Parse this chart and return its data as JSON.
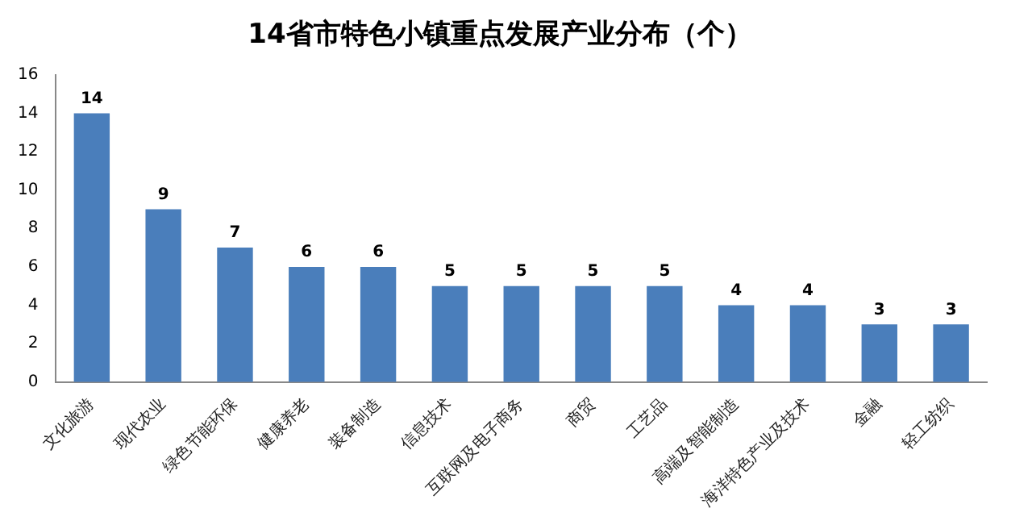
{
  "chart_data": {
    "type": "bar",
    "title": "14省市特色小镇重点发展产业分布（个）",
    "categories": [
      "文化旅游",
      "现代农业",
      "绿色节能环保",
      "健康养老",
      "装备制造",
      "信息技术",
      "互联网及电子商务",
      "商贸",
      "工艺品",
      "高端及智能制造",
      "海洋特色产业及技术",
      "金融",
      "轻工纺织"
    ],
    "values": [
      14,
      9,
      7,
      6,
      6,
      5,
      5,
      5,
      5,
      4,
      4,
      3,
      3
    ],
    "color": "#4a7ebb",
    "ylim": [
      0,
      16
    ],
    "yticks": [
      0,
      2,
      4,
      6,
      8,
      10,
      12,
      14,
      16
    ],
    "grid": false,
    "legend": false,
    "data_labels": true
  }
}
